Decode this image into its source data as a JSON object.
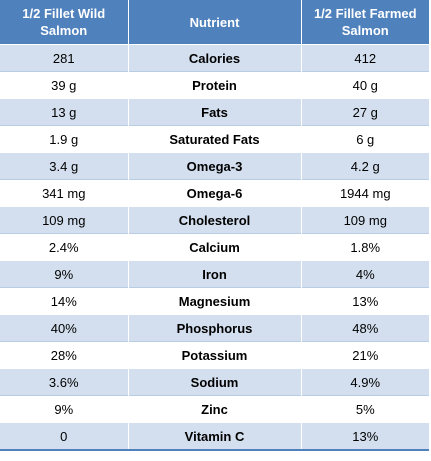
{
  "table": {
    "headers": {
      "wild": "1/2 Fillet Wild Salmon",
      "nutrient": "Nutrient",
      "farmed": "1/2 Fillet Farmed Salmon"
    },
    "rows": [
      {
        "wild": "281",
        "nutrient": "Calories",
        "farmed": "412"
      },
      {
        "wild": "39 g",
        "nutrient": "Protein",
        "farmed": "40 g"
      },
      {
        "wild": "13 g",
        "nutrient": "Fats",
        "farmed": "27 g"
      },
      {
        "wild": "1.9 g",
        "nutrient": "Saturated Fats",
        "farmed": "6 g"
      },
      {
        "wild": "3.4 g",
        "nutrient": "Omega-3",
        "farmed": "4.2 g"
      },
      {
        "wild": "341 mg",
        "nutrient": "Omega-6",
        "farmed": "1944 mg"
      },
      {
        "wild": "109 mg",
        "nutrient": "Cholesterol",
        "farmed": "109 mg"
      },
      {
        "wild": "2.4%",
        "nutrient": "Calcium",
        "farmed": "1.8%"
      },
      {
        "wild": "9%",
        "nutrient": "Iron",
        "farmed": "4%"
      },
      {
        "wild": "14%",
        "nutrient": "Magnesium",
        "farmed": "13%"
      },
      {
        "wild": "40%",
        "nutrient": "Phosphorus",
        "farmed": "48%"
      },
      {
        "wild": "28%",
        "nutrient": "Potassium",
        "farmed": "21%"
      },
      {
        "wild": "3.6%",
        "nutrient": "Sodium",
        "farmed": "4.9%"
      },
      {
        "wild": "9%",
        "nutrient": "Zinc",
        "farmed": "5%"
      },
      {
        "wild": "0",
        "nutrient": "Vitamin C",
        "farmed": "13%"
      }
    ]
  },
  "colors": {
    "header_bg": "#4f81bd",
    "band_bg": "#d3dfee",
    "header_text": "#ffffff"
  }
}
